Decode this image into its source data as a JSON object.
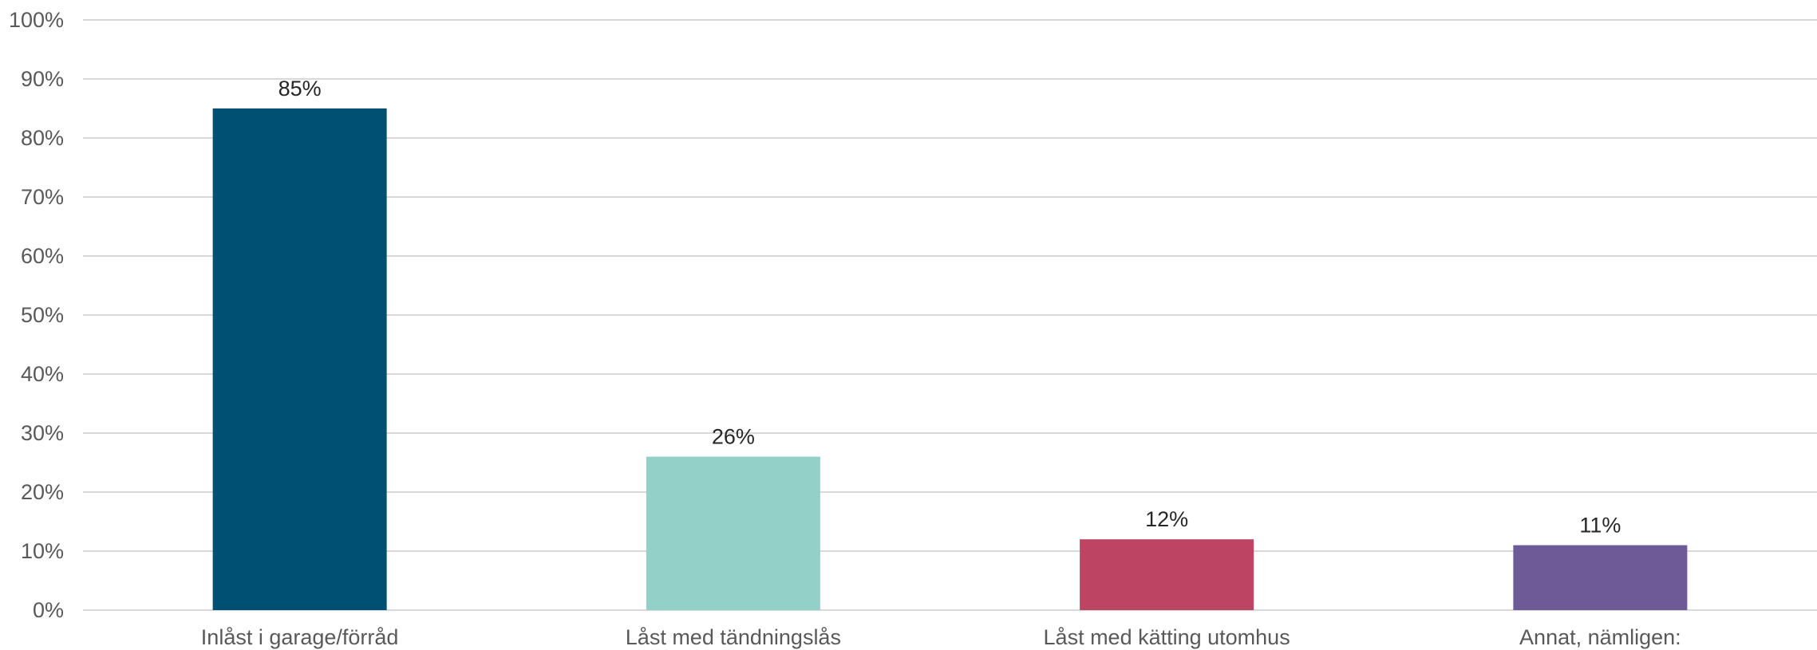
{
  "chart_data": {
    "type": "bar",
    "title": "",
    "xlabel": "",
    "ylabel": "",
    "categories": [
      "Inlåst i garage/förråd",
      "Låst med tändningslås",
      "Låst med kätting utomhus",
      "Annat, nämligen:"
    ],
    "values": [
      85,
      26,
      12,
      11
    ],
    "data_labels": [
      "85%",
      "26%",
      "12%",
      "11%"
    ],
    "colors": [
      "#005073",
      "#93d0c8",
      "#bd4462",
      "#6e5a96"
    ],
    "ylim": [
      0,
      100
    ],
    "y_ticks": [
      0,
      10,
      20,
      30,
      40,
      50,
      60,
      70,
      80,
      90,
      100
    ],
    "y_tick_labels": [
      "0%",
      "10%",
      "20%",
      "30%",
      "40%",
      "50%",
      "60%",
      "70%",
      "80%",
      "90%",
      "100%"
    ],
    "grid": true,
    "legend": "none"
  }
}
